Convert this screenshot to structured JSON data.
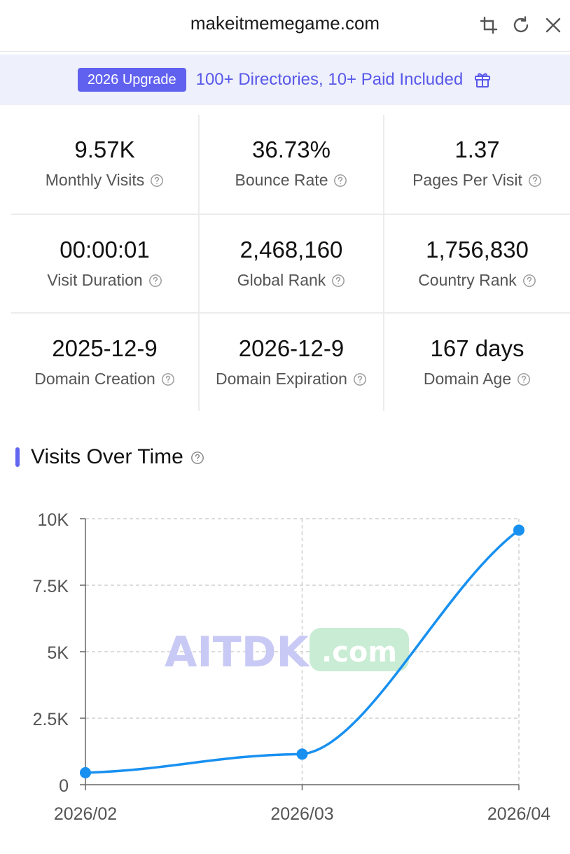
{
  "header": {
    "title": "makeitmemegame.com",
    "icons": [
      "crop-icon",
      "refresh-icon",
      "close-icon"
    ]
  },
  "banner": {
    "badge": "2026 Upgrade",
    "text": "100+ Directories, 10+ Paid Included",
    "icon": "gift-icon"
  },
  "stats": [
    {
      "value": "9.57K",
      "label": "Monthly Visits"
    },
    {
      "value": "36.73%",
      "label": "Bounce Rate"
    },
    {
      "value": "1.37",
      "label": "Pages Per Visit"
    },
    {
      "value": "00:00:01",
      "label": "Visit Duration"
    },
    {
      "value": "2,468,160",
      "label": "Global Rank"
    },
    {
      "value": "1,756,830",
      "label": "Country Rank"
    },
    {
      "value": "2025-12-9",
      "label": "Domain Creation"
    },
    {
      "value": "2026-12-9",
      "label": "Domain Expiration"
    },
    {
      "value": "167 days",
      "label": "Domain Age"
    }
  ],
  "visits_section": {
    "title": "Visits Over Time"
  },
  "watermark": {
    "left": "AITDK",
    "right": ".com"
  },
  "colors": {
    "accent": "#6161f0",
    "line": "#1890f0",
    "watermark_left": "#c9c9f5",
    "watermark_right_bg": "#c9ecd4"
  },
  "chart_data": {
    "type": "line",
    "categories": [
      "2026/02",
      "2026/03",
      "2026/04"
    ],
    "series": [
      {
        "values": [
          450,
          1150,
          9570
        ]
      }
    ],
    "ylim": [
      0,
      10000
    ],
    "yticks": [
      0,
      2500,
      5000,
      7500,
      10000
    ],
    "ytick_labels": [
      "0",
      "2.5K",
      "5K",
      "7.5K",
      "10K"
    ],
    "grid": true,
    "smooth": true
  }
}
